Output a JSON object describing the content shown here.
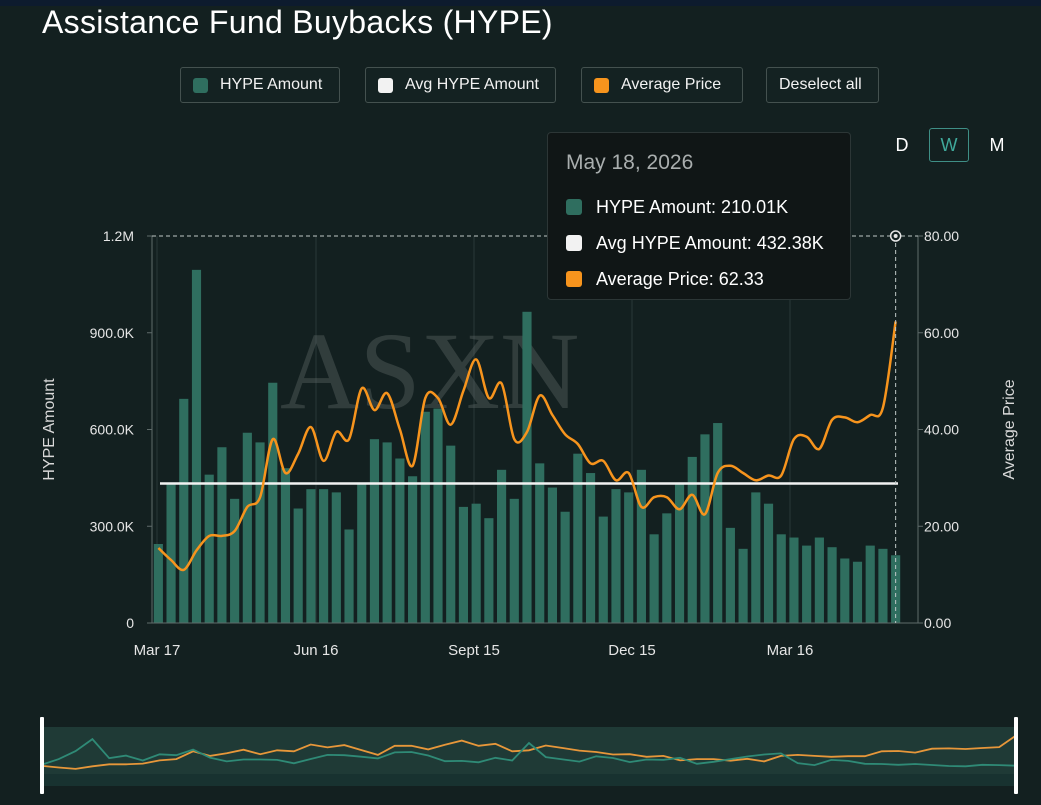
{
  "title": "Assistance Fund Buybacks (HYPE)",
  "legend": [
    {
      "label": "HYPE Amount",
      "color": "#2f6e5f"
    },
    {
      "label": "Avg HYPE Amount",
      "color": "#f2f2f2"
    },
    {
      "label": "Average Price",
      "color": "#f7941d"
    }
  ],
  "deselect_label": "Deselect all",
  "periods": [
    "D",
    "W",
    "M"
  ],
  "active_period": "W",
  "tooltip": {
    "date": "May 18, 2026",
    "rows": [
      {
        "text": "HYPE Amount: 210.01K",
        "color": "#2f6e5f"
      },
      {
        "text": "Avg HYPE Amount: 432.38K",
        "color": "#f2f2f2"
      },
      {
        "text": "Average Price: 62.33",
        "color": "#f7941d"
      }
    ]
  },
  "watermark": "ASXN",
  "chart_data": {
    "type": "bar",
    "title": "Assistance Fund Buybacks (HYPE)",
    "ylabel": "HYPE Amount",
    "y2label": "Average Price",
    "ylim": [
      0,
      1200000
    ],
    "y2lim": [
      0,
      80
    ],
    "yticks": [
      "0",
      "300.0K",
      "600.0K",
      "900.0K",
      "1.2M"
    ],
    "y2ticks": [
      "0.00",
      "20.00",
      "40.00",
      "60.00",
      "80.00"
    ],
    "xticks": [
      "Mar 17",
      "Jun 16",
      "Sept 15",
      "Dec 15",
      "Mar 16"
    ],
    "grid": true,
    "avg_hype_amount": 432380,
    "series": [
      {
        "name": "HYPE Amount",
        "type": "bar",
        "values": [
          245000,
          430000,
          695000,
          1095000,
          460000,
          545000,
          385000,
          590000,
          560000,
          745000,
          480000,
          355000,
          415000,
          415000,
          405000,
          290000,
          435000,
          570000,
          560000,
          510000,
          455000,
          655000,
          665000,
          550000,
          360000,
          370000,
          325000,
          475000,
          385000,
          965000,
          495000,
          420000,
          345000,
          525000,
          465000,
          330000,
          415000,
          405000,
          475000,
          275000,
          340000,
          430000,
          515000,
          585000,
          620000,
          295000,
          230000,
          405000,
          370000,
          275000,
          265000,
          240000,
          265000,
          235000,
          200000,
          190000,
          240000,
          230000,
          210010
        ]
      },
      {
        "name": "Average Price",
        "type": "line",
        "values": [
          15.5,
          13.0,
          11.0,
          15.0,
          18.0,
          18.0,
          19.0,
          24.0,
          26.0,
          38.0,
          31.0,
          35.0,
          40.5,
          33.5,
          39.5,
          38.0,
          48.5,
          44.0,
          47.5,
          40.0,
          32.5,
          46.5,
          46.5,
          41.0,
          48.0,
          54.5,
          46.5,
          49.5,
          38.0,
          39.5,
          47.0,
          43.0,
          39.0,
          37.0,
          33.0,
          33.5,
          29.5,
          31.0,
          24.0,
          26.0,
          26.0,
          23.5,
          26.5,
          22.5,
          31.0,
          32.5,
          31.0,
          29.5,
          30.5,
          30.5,
          38.0,
          38.5,
          36.0,
          42.0,
          42.5,
          41.5,
          43.0,
          44.5,
          62.33
        ]
      }
    ]
  }
}
